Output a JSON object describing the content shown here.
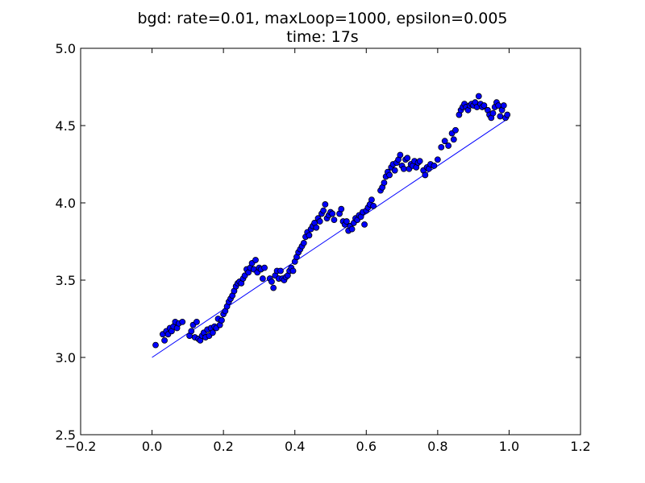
{
  "chart_data": {
    "type": "scatter",
    "title": "bgd: rate=0.01, maxLoop=1000, epsilon=0.005",
    "subtitle": "time: 17s",
    "xlim": [
      -0.2,
      1.2
    ],
    "ylim": [
      2.5,
      5.0
    ],
    "xticks": [
      -0.2,
      0.0,
      0.2,
      0.4,
      0.6,
      0.8,
      1.0,
      1.2
    ],
    "yticks": [
      2.5,
      3.0,
      3.5,
      4.0,
      4.5,
      5.0
    ],
    "xtick_labels": [
      "−0.2",
      "0.0",
      "0.2",
      "0.4",
      "0.6",
      "0.8",
      "1.0",
      "1.2"
    ],
    "ytick_labels": [
      "2.5",
      "3.0",
      "3.5",
      "4.0",
      "4.5",
      "5.0"
    ],
    "grid": false,
    "colors": {
      "points": "#0000ff",
      "line": "#0000ff",
      "edge": "#000000"
    },
    "points": [
      [
        0.01,
        3.08
      ],
      [
        0.03,
        3.15
      ],
      [
        0.035,
        3.11
      ],
      [
        0.04,
        3.17
      ],
      [
        0.045,
        3.15
      ],
      [
        0.05,
        3.19
      ],
      [
        0.055,
        3.17
      ],
      [
        0.06,
        3.2
      ],
      [
        0.065,
        3.23
      ],
      [
        0.07,
        3.19
      ],
      [
        0.075,
        3.22
      ],
      [
        0.085,
        3.23
      ],
      [
        0.105,
        3.14
      ],
      [
        0.11,
        3.17
      ],
      [
        0.115,
        3.21
      ],
      [
        0.12,
        3.13
      ],
      [
        0.125,
        3.23
      ],
      [
        0.13,
        3.12
      ],
      [
        0.135,
        3.11
      ],
      [
        0.14,
        3.14
      ],
      [
        0.145,
        3.16
      ],
      [
        0.15,
        3.13
      ],
      [
        0.155,
        3.18
      ],
      [
        0.16,
        3.14
      ],
      [
        0.165,
        3.19
      ],
      [
        0.17,
        3.16
      ],
      [
        0.175,
        3.2
      ],
      [
        0.18,
        3.19
      ],
      [
        0.185,
        3.25
      ],
      [
        0.19,
        3.21
      ],
      [
        0.195,
        3.24
      ],
      [
        0.2,
        3.28
      ],
      [
        0.205,
        3.3
      ],
      [
        0.21,
        3.33
      ],
      [
        0.215,
        3.36
      ],
      [
        0.22,
        3.38
      ],
      [
        0.225,
        3.4
      ],
      [
        0.23,
        3.43
      ],
      [
        0.235,
        3.46
      ],
      [
        0.24,
        3.48
      ],
      [
        0.245,
        3.49
      ],
      [
        0.25,
        3.48
      ],
      [
        0.255,
        3.51
      ],
      [
        0.26,
        3.53
      ],
      [
        0.265,
        3.57
      ],
      [
        0.27,
        3.55
      ],
      [
        0.275,
        3.58
      ],
      [
        0.28,
        3.61
      ],
      [
        0.285,
        3.57
      ],
      [
        0.29,
        3.63
      ],
      [
        0.295,
        3.55
      ],
      [
        0.3,
        3.58
      ],
      [
        0.305,
        3.57
      ],
      [
        0.31,
        3.51
      ],
      [
        0.315,
        3.58
      ],
      [
        0.33,
        3.51
      ],
      [
        0.335,
        3.49
      ],
      [
        0.34,
        3.45
      ],
      [
        0.345,
        3.53
      ],
      [
        0.35,
        3.56
      ],
      [
        0.355,
        3.51
      ],
      [
        0.36,
        3.56
      ],
      [
        0.365,
        3.51
      ],
      [
        0.37,
        3.5
      ],
      [
        0.375,
        3.52
      ],
      [
        0.38,
        3.53
      ],
      [
        0.385,
        3.56
      ],
      [
        0.39,
        3.58
      ],
      [
        0.395,
        3.56
      ],
      [
        0.4,
        3.62
      ],
      [
        0.405,
        3.65
      ],
      [
        0.41,
        3.68
      ],
      [
        0.415,
        3.7
      ],
      [
        0.42,
        3.72
      ],
      [
        0.425,
        3.74
      ],
      [
        0.43,
        3.78
      ],
      [
        0.435,
        3.81
      ],
      [
        0.44,
        3.79
      ],
      [
        0.445,
        3.83
      ],
      [
        0.45,
        3.85
      ],
      [
        0.455,
        3.87
      ],
      [
        0.46,
        3.84
      ],
      [
        0.465,
        3.9
      ],
      [
        0.47,
        3.88
      ],
      [
        0.475,
        3.93
      ],
      [
        0.48,
        3.95
      ],
      [
        0.485,
        3.99
      ],
      [
        0.49,
        3.9
      ],
      [
        0.495,
        3.92
      ],
      [
        0.5,
        3.94
      ],
      [
        0.505,
        3.93
      ],
      [
        0.51,
        3.89
      ],
      [
        0.525,
        3.93
      ],
      [
        0.53,
        3.96
      ],
      [
        0.535,
        3.88
      ],
      [
        0.54,
        3.86
      ],
      [
        0.545,
        3.88
      ],
      [
        0.55,
        3.82
      ],
      [
        0.555,
        3.85
      ],
      [
        0.56,
        3.83
      ],
      [
        0.565,
        3.87
      ],
      [
        0.57,
        3.9
      ],
      [
        0.575,
        3.89
      ],
      [
        0.58,
        3.92
      ],
      [
        0.585,
        3.91
      ],
      [
        0.59,
        3.94
      ],
      [
        0.595,
        3.86
      ],
      [
        0.6,
        3.95
      ],
      [
        0.605,
        3.97
      ],
      [
        0.61,
        3.99
      ],
      [
        0.615,
        4.02
      ],
      [
        0.62,
        3.98
      ],
      [
        0.64,
        4.08
      ],
      [
        0.645,
        4.1
      ],
      [
        0.65,
        4.13
      ],
      [
        0.655,
        4.17
      ],
      [
        0.66,
        4.2
      ],
      [
        0.665,
        4.18
      ],
      [
        0.67,
        4.23
      ],
      [
        0.675,
        4.25
      ],
      [
        0.68,
        4.21
      ],
      [
        0.685,
        4.26
      ],
      [
        0.69,
        4.28
      ],
      [
        0.695,
        4.31
      ],
      [
        0.7,
        4.24
      ],
      [
        0.705,
        4.22
      ],
      [
        0.71,
        4.28
      ],
      [
        0.715,
        4.29
      ],
      [
        0.72,
        4.22
      ],
      [
        0.725,
        4.25
      ],
      [
        0.73,
        4.24
      ],
      [
        0.735,
        4.27
      ],
      [
        0.74,
        4.23
      ],
      [
        0.745,
        4.26
      ],
      [
        0.75,
        4.27
      ],
      [
        0.76,
        4.21
      ],
      [
        0.765,
        4.18
      ],
      [
        0.77,
        4.23
      ],
      [
        0.775,
        4.22
      ],
      [
        0.78,
        4.25
      ],
      [
        0.79,
        4.24
      ],
      [
        0.8,
        4.28
      ],
      [
        0.81,
        4.36
      ],
      [
        0.82,
        4.4
      ],
      [
        0.83,
        4.37
      ],
      [
        0.84,
        4.45
      ],
      [
        0.845,
        4.41
      ],
      [
        0.85,
        4.47
      ],
      [
        0.86,
        4.57
      ],
      [
        0.865,
        4.6
      ],
      [
        0.87,
        4.62
      ],
      [
        0.875,
        4.64
      ],
      [
        0.88,
        4.62
      ],
      [
        0.885,
        4.6
      ],
      [
        0.89,
        4.63
      ],
      [
        0.895,
        4.64
      ],
      [
        0.9,
        4.63
      ],
      [
        0.905,
        4.65
      ],
      [
        0.91,
        4.62
      ],
      [
        0.915,
        4.69
      ],
      [
        0.92,
        4.64
      ],
      [
        0.925,
        4.62
      ],
      [
        0.93,
        4.63
      ],
      [
        0.94,
        4.6
      ],
      [
        0.945,
        4.57
      ],
      [
        0.95,
        4.55
      ],
      [
        0.955,
        4.58
      ],
      [
        0.96,
        4.62
      ],
      [
        0.965,
        4.65
      ],
      [
        0.97,
        4.63
      ],
      [
        0.975,
        4.56
      ],
      [
        0.98,
        4.6
      ],
      [
        0.985,
        4.63
      ],
      [
        0.99,
        4.55
      ],
      [
        0.995,
        4.57
      ]
    ],
    "fit_line": {
      "x": [
        0.0,
        1.0
      ],
      "y": [
        3.0,
        4.55
      ]
    }
  }
}
